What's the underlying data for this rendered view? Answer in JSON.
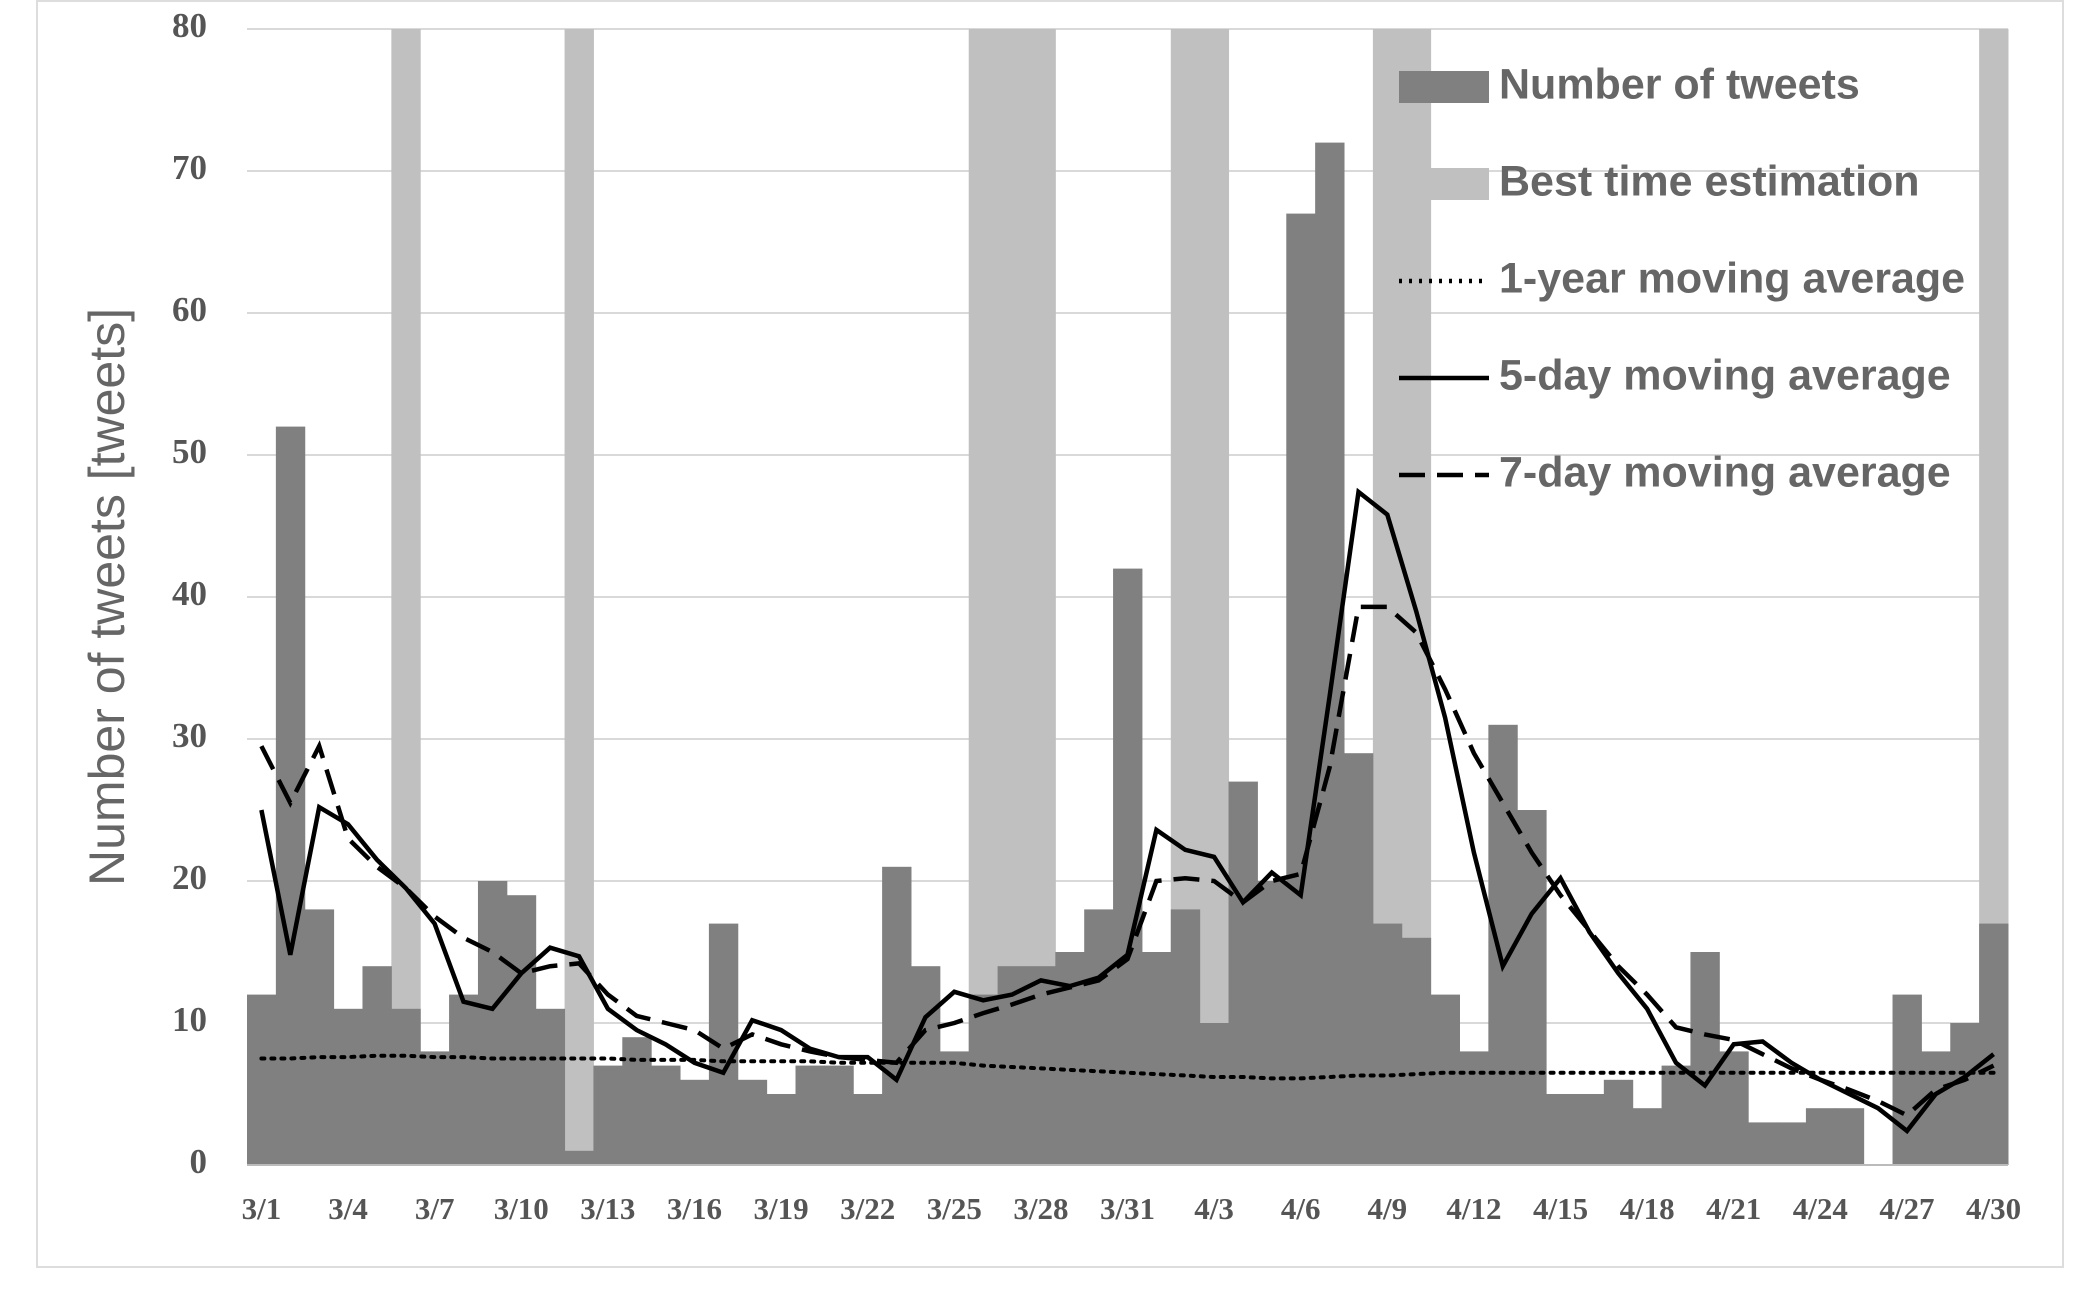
{
  "chart_data": {
    "type": "bar",
    "y_label": "Number of tweets [tweets]",
    "categories": [
      "3/1",
      null,
      null,
      "3/4",
      null,
      null,
      "3/7",
      null,
      null,
      "3/10",
      null,
      null,
      "3/13",
      null,
      null,
      "3/16",
      null,
      null,
      "3/19",
      null,
      null,
      "3/22",
      null,
      null,
      "3/25",
      null,
      null,
      "3/28",
      null,
      null,
      "3/31",
      null,
      null,
      "4/3",
      null,
      null,
      "4/6",
      null,
      null,
      "4/9",
      null,
      null,
      "4/12",
      null,
      null,
      "4/15",
      null,
      null,
      "4/18",
      null,
      null,
      "4/21",
      null,
      null,
      "4/24",
      null,
      null,
      "4/27",
      null,
      null,
      "4/30"
    ],
    "ylim": [
      0,
      80
    ],
    "yticks": [
      0,
      10,
      20,
      30,
      40,
      50,
      60,
      70,
      80
    ],
    "grid": true,
    "legend": "top-right",
    "series": [
      {
        "name": "Number of tweets",
        "kind": "bar",
        "color": "#808080",
        "values": [
          12,
          52,
          18,
          11,
          14,
          11,
          8,
          12,
          20,
          19,
          11,
          1,
          7,
          9,
          7,
          6,
          17,
          6,
          5,
          7,
          7,
          5,
          21,
          14,
          8,
          12,
          14,
          14,
          15,
          18,
          42,
          15,
          18,
          10,
          27,
          20,
          67,
          72,
          29,
          17,
          16,
          12,
          8,
          31,
          25,
          5,
          5,
          6,
          4,
          7,
          15,
          8,
          3,
          3,
          4,
          4,
          0,
          12,
          8,
          10,
          17
        ]
      },
      {
        "name": "Best time estimation",
        "kind": "bar",
        "color": "#c0c0c0",
        "values": [
          null,
          null,
          null,
          null,
          null,
          80,
          null,
          null,
          null,
          null,
          null,
          80,
          null,
          null,
          null,
          null,
          null,
          null,
          null,
          null,
          null,
          null,
          null,
          null,
          null,
          80,
          80,
          80,
          null,
          null,
          null,
          null,
          80,
          80,
          null,
          null,
          null,
          null,
          null,
          80,
          80,
          null,
          null,
          null,
          null,
          null,
          null,
          null,
          null,
          null,
          null,
          null,
          null,
          null,
          null,
          null,
          null,
          null,
          null,
          null,
          80
        ]
      },
      {
        "name": "1-year moving average",
        "kind": "line",
        "color": "#000000",
        "dash": "dotted",
        "values": [
          7.5,
          7.5,
          7.6,
          7.6,
          7.7,
          7.7,
          7.6,
          7.6,
          7.5,
          7.5,
          7.5,
          7.5,
          7.5,
          7.4,
          7.4,
          7.4,
          7.3,
          7.3,
          7.3,
          7.3,
          7.2,
          7.2,
          7.2,
          7.2,
          7.2,
          7.0,
          6.9,
          6.8,
          6.7,
          6.6,
          6.5,
          6.4,
          6.3,
          6.2,
          6.2,
          6.1,
          6.1,
          6.2,
          6.3,
          6.3,
          6.4,
          6.5,
          6.5,
          6.5,
          6.5,
          6.5,
          6.5,
          6.5,
          6.5,
          6.5,
          6.5,
          6.5,
          6.5,
          6.5,
          6.5,
          6.5,
          6.5,
          6.5,
          6.5,
          6.5,
          6.5
        ]
      },
      {
        "name": "5-day moving average",
        "kind": "line",
        "color": "#000000",
        "dash": "solid",
        "values": [
          25,
          14.8,
          25.2,
          24,
          21.5,
          19.5,
          17,
          11.5,
          11,
          13.5,
          15.3,
          14.7,
          11,
          9.5,
          8.5,
          7.2,
          6.5,
          10.2,
          9.5,
          8.2,
          7.6,
          7.6,
          6,
          10.4,
          12.2,
          11.6,
          12,
          13,
          12.6,
          13.2,
          14.8,
          23.6,
          22.2,
          21.7,
          18.5,
          20.6,
          19,
          33,
          47.4,
          45.8,
          39,
          31.5,
          22,
          14,
          17.7,
          20.2,
          16.4,
          13.5,
          11,
          7.2,
          5.6,
          8.5,
          8.7,
          7.2,
          6,
          5,
          4,
          2.4,
          5,
          6.2,
          7.8
        ]
      },
      {
        "name": "7-day moving average",
        "kind": "line",
        "color": "#000000",
        "dash": "dashed",
        "values": [
          29.5,
          25.5,
          29.5,
          23,
          21,
          19.5,
          17.5,
          16,
          15,
          13.5,
          14,
          14.2,
          12,
          10.5,
          10,
          9.5,
          8.2,
          9.2,
          8.5,
          8,
          7.6,
          7.4,
          7.2,
          9.5,
          10,
          10.7,
          11.3,
          12,
          12.5,
          13,
          14.5,
          20,
          20.2,
          20,
          18.5,
          20,
          20.5,
          28,
          39.3,
          39.3,
          37.5,
          33.5,
          29,
          25.5,
          22,
          19,
          16.5,
          14,
          12,
          9.7,
          9.2,
          8.8,
          7.8,
          6.8,
          6,
          5.3,
          4.5,
          3.5,
          5.3,
          6,
          7
        ]
      }
    ]
  }
}
